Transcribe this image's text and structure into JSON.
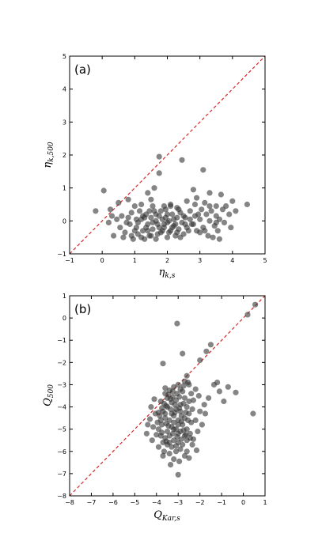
{
  "chart_data": [
    {
      "type": "scatter",
      "panel_label": "(a)",
      "xlabel_main": "η",
      "xlabel_sub": "k,s",
      "ylabel_main": "η",
      "ylabel_sub": "k,500",
      "xlim": [
        -1,
        5
      ],
      "ylim": [
        -1,
        5
      ],
      "xticks": [
        "−1",
        "0",
        "1",
        "2",
        "3",
        "4",
        "5"
      ],
      "yticks": [
        "−1",
        "0",
        "1",
        "2",
        "3",
        "4",
        "5"
      ],
      "grid": false,
      "reference_line": "y = x",
      "reference_color": "#d62728",
      "point_color": "#333333",
      "points": [
        [
          0.05,
          0.92
        ],
        [
          1.75,
          1.95
        ],
        [
          2.45,
          1.85
        ],
        [
          3.1,
          1.55
        ],
        [
          1.75,
          1.45
        ],
        [
          1.6,
          1.0
        ],
        [
          2.8,
          0.95
        ],
        [
          3.3,
          0.85
        ],
        [
          3.65,
          0.8
        ],
        [
          1.4,
          0.85
        ],
        [
          4.0,
          0.6
        ],
        [
          4.45,
          0.5
        ],
        [
          -0.2,
          0.3
        ],
        [
          0.25,
          0.35
        ],
        [
          0.5,
          0.55
        ],
        [
          0.8,
          0.65
        ],
        [
          1.0,
          0.45
        ],
        [
          1.2,
          0.5
        ],
        [
          1.5,
          0.65
        ],
        [
          1.9,
          0.45
        ],
        [
          2.1,
          0.5
        ],
        [
          2.3,
          0.4
        ],
        [
          2.6,
          0.6
        ],
        [
          2.9,
          0.7
        ],
        [
          3.15,
          0.55
        ],
        [
          3.5,
          0.45
        ],
        [
          3.7,
          0.35
        ],
        [
          3.9,
          0.2
        ],
        [
          0.2,
          -0.05
        ],
        [
          0.35,
          -0.45
        ],
        [
          0.55,
          -0.2
        ],
        [
          0.7,
          -0.35
        ],
        [
          0.85,
          -0.1
        ],
        [
          0.95,
          -0.55
        ],
        [
          1.05,
          -0.2
        ],
        [
          1.1,
          -0.4
        ],
        [
          1.2,
          0.05
        ],
        [
          1.25,
          -0.3
        ],
        [
          1.3,
          -0.55
        ],
        [
          1.35,
          0.2
        ],
        [
          1.4,
          -0.1
        ],
        [
          1.45,
          -0.45
        ],
        [
          1.5,
          0.1
        ],
        [
          1.55,
          -0.25
        ],
        [
          1.6,
          0.3
        ],
        [
          1.65,
          -0.55
        ],
        [
          1.7,
          -0.1
        ],
        [
          1.75,
          0.15
        ],
        [
          1.8,
          -0.35
        ],
        [
          1.85,
          0.05
        ],
        [
          1.9,
          -0.2
        ],
        [
          1.95,
          0.35
        ],
        [
          2.0,
          -0.5
        ],
        [
          2.05,
          0.0
        ],
        [
          2.1,
          -0.3
        ],
        [
          2.15,
          0.2
        ],
        [
          2.2,
          -0.15
        ],
        [
          2.25,
          -0.45
        ],
        [
          2.3,
          0.1
        ],
        [
          2.35,
          -0.25
        ],
        [
          2.4,
          0.25
        ],
        [
          2.45,
          -0.05
        ],
        [
          2.5,
          -0.4
        ],
        [
          2.55,
          0.1
        ],
        [
          2.6,
          -0.2
        ],
        [
          2.7,
          0.3
        ],
        [
          2.75,
          -0.1
        ],
        [
          2.85,
          0.15
        ],
        [
          2.9,
          -0.3
        ],
        [
          3.0,
          0.05
        ],
        [
          3.05,
          0.35
        ],
        [
          3.1,
          -0.2
        ],
        [
          3.2,
          0.2
        ],
        [
          3.25,
          -0.45
        ],
        [
          3.3,
          0.0
        ],
        [
          3.35,
          0.3
        ],
        [
          3.45,
          -0.15
        ],
        [
          3.5,
          0.15
        ],
        [
          3.55,
          -0.3
        ],
        [
          3.6,
          0.05
        ],
        [
          3.75,
          -0.05
        ],
        [
          3.8,
          0.45
        ],
        [
          3.95,
          -0.2
        ],
        [
          4.1,
          0.3
        ],
        [
          0.45,
          0.05
        ],
        [
          0.6,
          0.15
        ],
        [
          0.75,
          -0.05
        ],
        [
          0.9,
          0.25
        ],
        [
          1.0,
          -0.3
        ],
        [
          1.15,
          0.3
        ],
        [
          1.3,
          0.1
        ],
        [
          1.45,
          0.3
        ],
        [
          1.55,
          0.45
        ],
        [
          1.65,
          0.0
        ],
        [
          1.7,
          -0.4
        ],
        [
          1.85,
          -0.3
        ],
        [
          1.95,
          0.1
        ],
        [
          2.05,
          -0.35
        ],
        [
          2.2,
          0.05
        ],
        [
          2.35,
          0.35
        ],
        [
          2.4,
          -0.5
        ],
        [
          2.65,
          -0.3
        ],
        [
          2.8,
          -0.1
        ],
        [
          2.95,
          0.2
        ],
        [
          3.15,
          -0.3
        ],
        [
          3.4,
          -0.5
        ],
        [
          3.6,
          -0.55
        ],
        [
          1.1,
          -0.05
        ],
        [
          1.25,
          0.15
        ],
        [
          1.4,
          -0.3
        ],
        [
          1.55,
          -0.05
        ],
        [
          1.75,
          -0.2
        ],
        [
          1.8,
          0.3
        ],
        [
          2.0,
          0.2
        ],
        [
          2.1,
          0.45
        ],
        [
          2.25,
          -0.1
        ],
        [
          2.5,
          0.15
        ],
        [
          2.85,
          0.5
        ],
        [
          0.9,
          -0.45
        ],
        [
          1.05,
          0.05
        ],
        [
          1.2,
          -0.5
        ],
        [
          1.35,
          -0.2
        ],
        [
          1.5,
          -0.45
        ],
        [
          1.65,
          0.2
        ],
        [
          1.9,
          -0.1
        ],
        [
          2.0,
          -0.05
        ],
        [
          2.15,
          -0.2
        ],
        [
          2.3,
          -0.35
        ],
        [
          2.55,
          -0.1
        ],
        [
          2.7,
          0.05
        ],
        [
          3.0,
          -0.35
        ],
        [
          3.3,
          0.45
        ],
        [
          3.5,
          -0.05
        ],
        [
          0.3,
          0.15
        ],
        [
          0.65,
          -0.5
        ],
        [
          0.8,
          0.1
        ]
      ]
    },
    {
      "type": "scatter",
      "panel_label": "(b)",
      "xlabel_main": "Q",
      "xlabel_sub": "Kar,s",
      "ylabel_main": "Q",
      "ylabel_sub": "500",
      "xlim": [
        -8,
        1
      ],
      "ylim": [
        -8,
        1
      ],
      "xticks": [
        "−8",
        "−7",
        "−6",
        "−5",
        "−4",
        "−3",
        "−2",
        "−1",
        "0",
        "1"
      ],
      "yticks": [
        "−8",
        "−7",
        "−6",
        "−5",
        "−4",
        "−3",
        "−2",
        "−1",
        "0",
        "1"
      ],
      "grid": false,
      "reference_line": "y = x",
      "reference_color": "#d62728",
      "point_color": "#333333",
      "points": [
        [
          -3.05,
          -0.25
        ],
        [
          0.55,
          0.6
        ],
        [
          0.2,
          0.15
        ],
        [
          -1.5,
          -1.2
        ],
        [
          -1.7,
          -1.5
        ],
        [
          -2.0,
          -1.9
        ],
        [
          -3.7,
          -2.05
        ],
        [
          -2.8,
          -1.6
        ],
        [
          -1.2,
          -2.9
        ],
        [
          -0.7,
          -3.1
        ],
        [
          -0.35,
          -3.35
        ],
        [
          0.45,
          -4.3
        ],
        [
          -1.1,
          -3.3
        ],
        [
          -1.6,
          -3.6
        ],
        [
          -2.0,
          -4.2
        ],
        [
          -2.2,
          -4.6
        ],
        [
          -2.1,
          -5.1
        ],
        [
          -2.3,
          -5.45
        ],
        [
          -2.15,
          -5.95
        ],
        [
          -2.5,
          -6.3
        ],
        [
          -3.0,
          -7.05
        ],
        [
          -3.35,
          -6.6
        ],
        [
          -3.7,
          -6.2
        ],
        [
          -3.9,
          -5.8
        ],
        [
          -4.2,
          -5.5
        ],
        [
          -4.4,
          -4.8
        ],
        [
          -4.25,
          -4.0
        ],
        [
          -4.1,
          -3.65
        ],
        [
          -2.6,
          -2.6
        ],
        [
          -2.7,
          -2.85
        ],
        [
          -2.5,
          -3.0
        ],
        [
          -2.9,
          -3.2
        ],
        [
          -2.4,
          -3.4
        ],
        [
          -2.8,
          -3.3
        ],
        [
          -3.0,
          -3.0
        ],
        [
          -3.2,
          -3.1
        ],
        [
          -3.4,
          -3.25
        ],
        [
          -3.5,
          -3.6
        ],
        [
          -3.3,
          -3.8
        ],
        [
          -3.1,
          -3.7
        ],
        [
          -2.9,
          -3.9
        ],
        [
          -2.7,
          -3.6
        ],
        [
          -2.6,
          -4.0
        ],
        [
          -2.5,
          -4.3
        ],
        [
          -2.7,
          -4.5
        ],
        [
          -2.9,
          -4.2
        ],
        [
          -3.1,
          -4.1
        ],
        [
          -3.3,
          -4.3
        ],
        [
          -3.5,
          -4.0
        ],
        [
          -3.7,
          -4.2
        ],
        [
          -3.6,
          -4.5
        ],
        [
          -3.4,
          -4.6
        ],
        [
          -3.2,
          -4.4
        ],
        [
          -3.0,
          -4.6
        ],
        [
          -2.8,
          -4.8
        ],
        [
          -2.6,
          -5.0
        ],
        [
          -2.4,
          -4.7
        ],
        [
          -2.45,
          -5.2
        ],
        [
          -2.7,
          -5.3
        ],
        [
          -2.9,
          -5.1
        ],
        [
          -3.1,
          -5.0
        ],
        [
          -3.3,
          -4.9
        ],
        [
          -3.5,
          -5.1
        ],
        [
          -3.75,
          -4.8
        ],
        [
          -3.9,
          -5.0
        ],
        [
          -3.8,
          -5.3
        ],
        [
          -3.6,
          -5.4
        ],
        [
          -3.4,
          -5.3
        ],
        [
          -3.2,
          -5.5
        ],
        [
          -3.0,
          -5.6
        ],
        [
          -2.8,
          -5.7
        ],
        [
          -2.6,
          -5.5
        ],
        [
          -2.9,
          -5.9
        ],
        [
          -3.1,
          -6.0
        ],
        [
          -3.3,
          -5.8
        ],
        [
          -3.5,
          -5.7
        ],
        [
          -3.7,
          -5.6
        ],
        [
          -3.4,
          -6.1
        ],
        [
          -2.7,
          -6.2
        ],
        [
          -3.0,
          -4.8
        ],
        [
          -3.2,
          -4.7
        ],
        [
          -2.85,
          -4.4
        ],
        [
          -3.35,
          -4.1
        ],
        [
          -3.15,
          -3.9
        ],
        [
          -2.95,
          -3.55
        ],
        [
          -3.45,
          -3.45
        ],
        [
          -3.65,
          -3.85
        ],
        [
          -3.85,
          -4.4
        ],
        [
          -3.95,
          -4.7
        ],
        [
          -3.55,
          -4.75
        ],
        [
          -3.25,
          -5.2
        ],
        [
          -3.05,
          -5.35
        ],
        [
          -2.75,
          -5.05
        ],
        [
          -2.55,
          -4.6
        ],
        [
          -2.35,
          -4.1
        ],
        [
          -2.3,
          -3.7
        ],
        [
          -2.2,
          -3.2
        ],
        [
          -2.55,
          -2.9
        ],
        [
          -2.75,
          -3.05
        ],
        [
          -3.05,
          -3.4
        ],
        [
          -3.25,
          -3.55
        ],
        [
          -3.6,
          -3.4
        ],
        [
          -3.8,
          -3.75
        ],
        [
          -4.05,
          -4.3
        ],
        [
          -4.15,
          -4.9
        ],
        [
          -4.0,
          -5.25
        ],
        [
          -3.65,
          -6.0
        ],
        [
          -3.2,
          -6.35
        ],
        [
          -2.95,
          -6.45
        ],
        [
          -2.6,
          -6.0
        ],
        [
          -2.35,
          -5.7
        ],
        [
          -1.9,
          -4.8
        ],
        [
          -1.75,
          -4.3
        ],
        [
          -1.8,
          -3.9
        ],
        [
          -2.05,
          -3.5
        ],
        [
          -1.35,
          -3.0
        ],
        [
          -0.9,
          -3.75
        ],
        [
          -2.65,
          -4.25
        ],
        [
          -2.85,
          -4.65
        ],
        [
          -3.15,
          -4.25
        ],
        [
          -3.45,
          -4.85
        ],
        [
          -3.75,
          -5.15
        ],
        [
          -3.55,
          -5.55
        ],
        [
          -3.1,
          -5.75
        ],
        [
          -2.85,
          -5.45
        ],
        [
          -2.65,
          -5.25
        ],
        [
          -2.45,
          -5.4
        ],
        [
          -3.35,
          -3.65
        ],
        [
          -3.55,
          -3.95
        ],
        [
          -3.75,
          -4.05
        ],
        [
          -2.95,
          -4.05
        ],
        [
          -2.75,
          -3.85
        ],
        [
          -3.0,
          -5.2
        ],
        [
          -3.2,
          -5.0
        ],
        [
          -3.4,
          -5.6
        ],
        [
          -3.6,
          -4.3
        ],
        [
          -3.8,
          -4.6
        ],
        [
          -2.5,
          -3.75
        ],
        [
          -3.9,
          -4.25
        ],
        [
          -4.3,
          -4.55
        ],
        [
          -4.45,
          -5.2
        ],
        [
          -3.25,
          -3.3
        ],
        [
          -3.6,
          -3.15
        ]
      ]
    }
  ]
}
